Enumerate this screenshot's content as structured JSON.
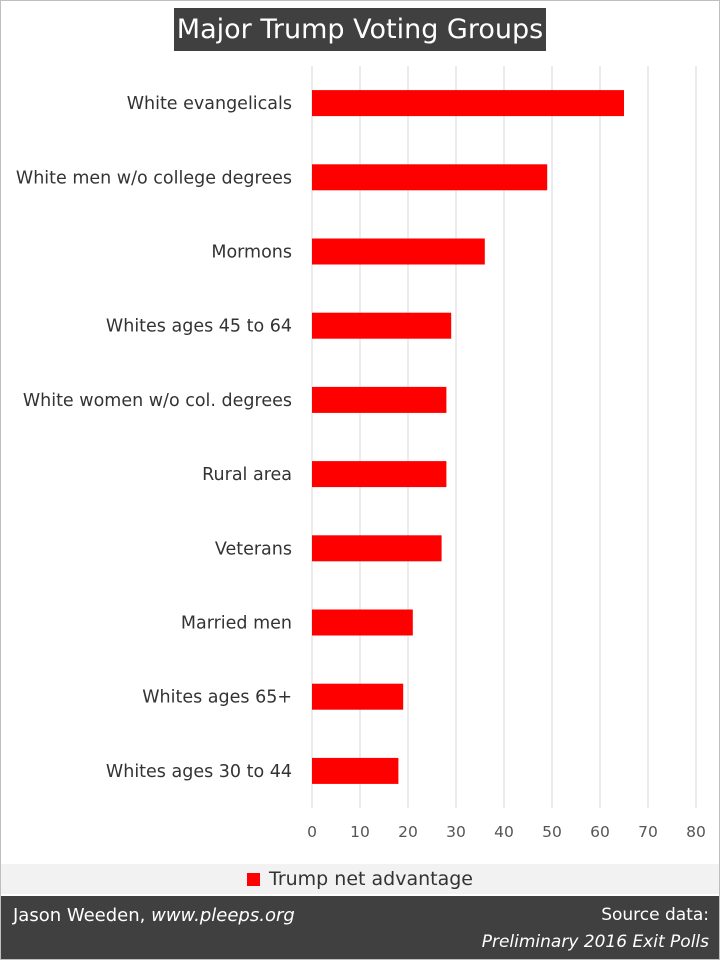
{
  "chart_data": {
    "type": "bar",
    "orientation": "horizontal",
    "title": "Major Trump Voting Groups",
    "categories": [
      "White evangelicals",
      "White men w/o college degrees",
      "Mormons",
      "Whites ages 45 to 64",
      "White women w/o col. degrees",
      "Rural area",
      "Veterans",
      "Married men",
      "Whites ages 65+",
      "Whites ages 30 to 44"
    ],
    "series": [
      {
        "name": "Trump net advantage",
        "values": [
          65,
          49,
          36,
          29,
          28,
          28,
          27,
          21,
          19,
          18
        ],
        "color": "#ff0000"
      }
    ],
    "xlim": [
      0,
      80
    ],
    "xticks": [
      "0",
      "10",
      "20",
      "30",
      "40",
      "50",
      "60",
      "70",
      "80"
    ],
    "xlabel": "",
    "ylabel": "",
    "grid": true,
    "legend_position": "bottom"
  },
  "footer": {
    "author": "Jason Weeden, ",
    "site": "www.pleeps.org",
    "source_line1": "Source data:",
    "source_line2": "Preliminary 2016 Exit Polls"
  },
  "colors": {
    "title_background": "#404040",
    "footer_background": "#404040",
    "legend_background": "#f2f2f2",
    "gridline": "#d9d9d9"
  }
}
